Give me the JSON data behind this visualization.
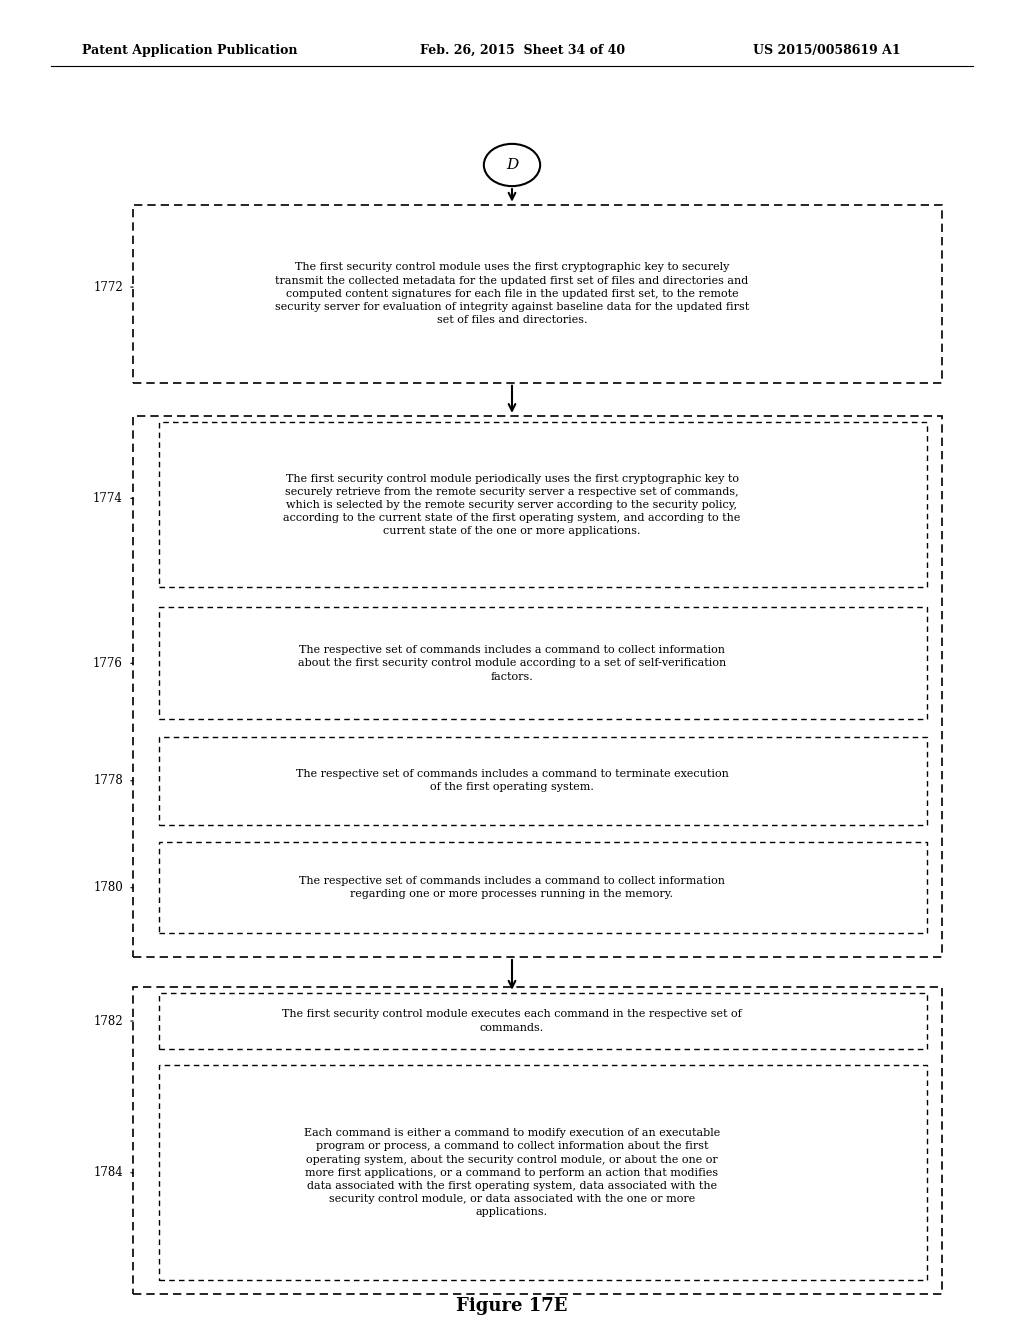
{
  "header_left": "Patent Application Publication",
  "header_mid": "Feb. 26, 2015  Sheet 34 of 40",
  "header_right": "US 2015/0058619 A1",
  "figure_label": "Figure 17E",
  "connector_label": "D",
  "text_1772": "The first security control module uses the first cryptographic key to securely\ntransmit the collected metadata for the updated first set of files and directories and\ncomputed content signatures for each file in the updated first set, to the remote\nsecurity server for evaluation of integrity against baseline data for the updated first\nset of files and directories.",
  "text_1774": "The first security control module periodically uses the first cryptographic key to\nsecurely retrieve from the remote security server a respective set of commands,\nwhich is selected by the remote security server according to the security policy,\naccording to the current state of the first operating system, and according to the\ncurrent state of the one or more applications.",
  "text_1776": "The respective set of commands includes a command to collect information\nabout the first security control module according to a set of self-verification\nfactors.",
  "text_1778": "The respective set of commands includes a command to terminate execution\nof the first operating system.",
  "text_1780": "The respective set of commands includes a command to collect information\nregarding one or more processes running in the memory.",
  "text_1782": "The first security control module executes each command in the respective set of\ncommands.",
  "text_1784": "Each command is either a command to modify execution of an executable\nprogram or process, a command to collect information about the first\noperating system, about the security control module, or about the one or\nmore first applications, or a command to perform an action that modifies\ndata associated with the first operating system, data associated with the\nsecurity control module, or data associated with the one or more\napplications.",
  "bg_color": "#ffffff",
  "text_color": "#000000",
  "font_size": 8.0,
  "label_font_size": 8.5
}
